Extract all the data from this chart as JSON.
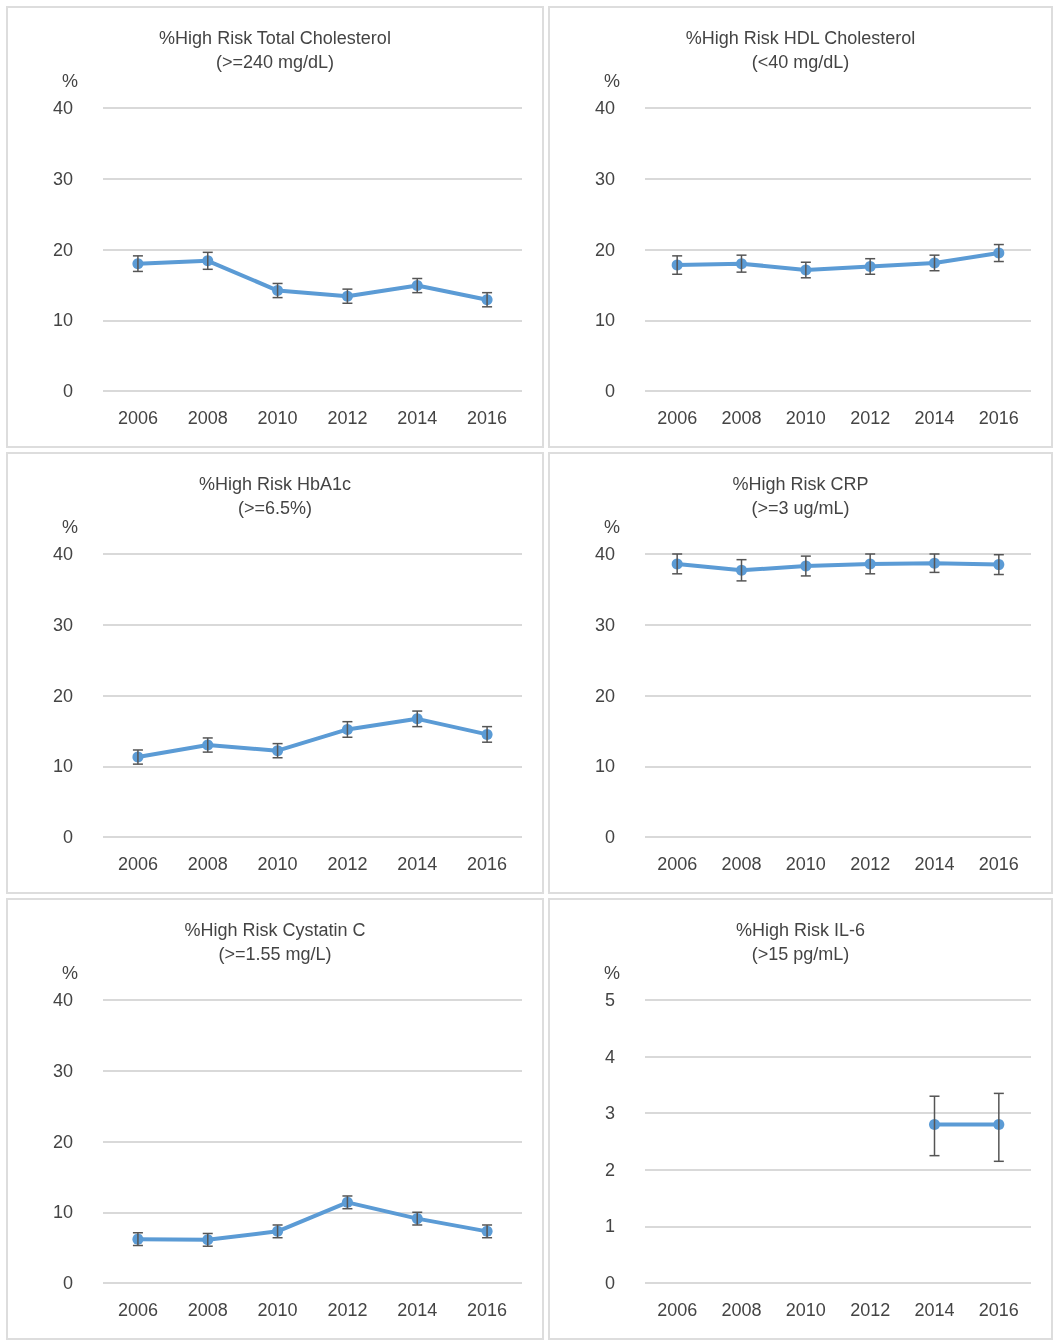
{
  "chart_data": [
    {
      "type": "line",
      "title": "%High Risk Total Cholesterol",
      "subtitle": "(>=240 mg/dL)",
      "ylabel": "%",
      "categories": [
        "2006",
        "2008",
        "2010",
        "2012",
        "2014",
        "2016"
      ],
      "series": [
        {
          "color": "#5b9bd5",
          "values": [
            18.0,
            18.4,
            14.2,
            13.4,
            14.9,
            12.9
          ],
          "errors": [
            1.1,
            1.2,
            1.0,
            1.0,
            1.0,
            1.0
          ]
        }
      ],
      "ylim": [
        0,
        40
      ],
      "yticks": [
        0,
        10,
        20,
        30,
        40
      ],
      "grid": "y",
      "marker": "circle"
    },
    {
      "type": "line",
      "title": "%High Risk HDL Cholesterol",
      "subtitle": "(<40 mg/dL)",
      "ylabel": "%",
      "categories": [
        "2006",
        "2008",
        "2010",
        "2012",
        "2014",
        "2016"
      ],
      "series": [
        {
          "color": "#5b9bd5",
          "values": [
            17.8,
            18.0,
            17.1,
            17.6,
            18.1,
            19.5
          ],
          "errors": [
            1.3,
            1.2,
            1.1,
            1.1,
            1.1,
            1.2
          ]
        }
      ],
      "ylim": [
        0,
        40
      ],
      "yticks": [
        0,
        10,
        20,
        30,
        40
      ],
      "grid": "y",
      "marker": "circle"
    },
    {
      "type": "line",
      "title": "%High Risk HbA1c",
      "subtitle": "(>=6.5%)",
      "ylabel": "%",
      "categories": [
        "2006",
        "2008",
        "2010",
        "2012",
        "2014",
        "2016"
      ],
      "series": [
        {
          "color": "#5b9bd5",
          "values": [
            11.3,
            13.0,
            12.2,
            15.2,
            16.7,
            14.5
          ],
          "errors": [
            1.0,
            1.0,
            1.0,
            1.1,
            1.1,
            1.1
          ]
        }
      ],
      "ylim": [
        0,
        40
      ],
      "yticks": [
        0,
        10,
        20,
        30,
        40
      ],
      "grid": "y",
      "marker": "circle"
    },
    {
      "type": "line",
      "title": "%High Risk CRP",
      "subtitle": "(>=3 ug/mL)",
      "ylabel": "%",
      "categories": [
        "2006",
        "2008",
        "2010",
        "2012",
        "2014",
        "2016"
      ],
      "series": [
        {
          "color": "#5b9bd5",
          "values": [
            38.6,
            37.7,
            38.3,
            38.6,
            38.7,
            38.5
          ],
          "errors": [
            1.4,
            1.5,
            1.4,
            1.4,
            1.3,
            1.4
          ]
        }
      ],
      "ylim": [
        0,
        40
      ],
      "yticks": [
        0,
        10,
        20,
        30,
        40
      ],
      "grid": "y",
      "marker": "circle"
    },
    {
      "type": "line",
      "title": "%High Risk Cystatin C",
      "subtitle": "(>=1.55 mg/L)",
      "ylabel": "%",
      "categories": [
        "2006",
        "2008",
        "2010",
        "2012",
        "2014",
        "2016"
      ],
      "series": [
        {
          "color": "#5b9bd5",
          "values": [
            6.2,
            6.1,
            7.3,
            11.4,
            9.1,
            7.3
          ],
          "errors": [
            0.9,
            0.9,
            0.9,
            0.9,
            0.9,
            0.9
          ]
        }
      ],
      "ylim": [
        0,
        40
      ],
      "yticks": [
        0,
        10,
        20,
        30,
        40
      ],
      "grid": "y",
      "marker": "circle"
    },
    {
      "type": "line",
      "title": "%High Risk IL-6",
      "subtitle": "(>15 pg/mL)",
      "ylabel": "%",
      "categories": [
        "2006",
        "2008",
        "2010",
        "2012",
        "2014",
        "2016"
      ],
      "series": [
        {
          "color": "#5b9bd5",
          "values": [
            null,
            null,
            null,
            null,
            2.8,
            2.8
          ],
          "errors": [
            null,
            null,
            null,
            null,
            [
              2.25,
              3.3
            ],
            [
              2.15,
              3.35
            ]
          ]
        }
      ],
      "ylim": [
        0,
        5
      ],
      "yticks": [
        0,
        1,
        2,
        3,
        4,
        5
      ],
      "grid": "y",
      "marker": "circle"
    }
  ]
}
